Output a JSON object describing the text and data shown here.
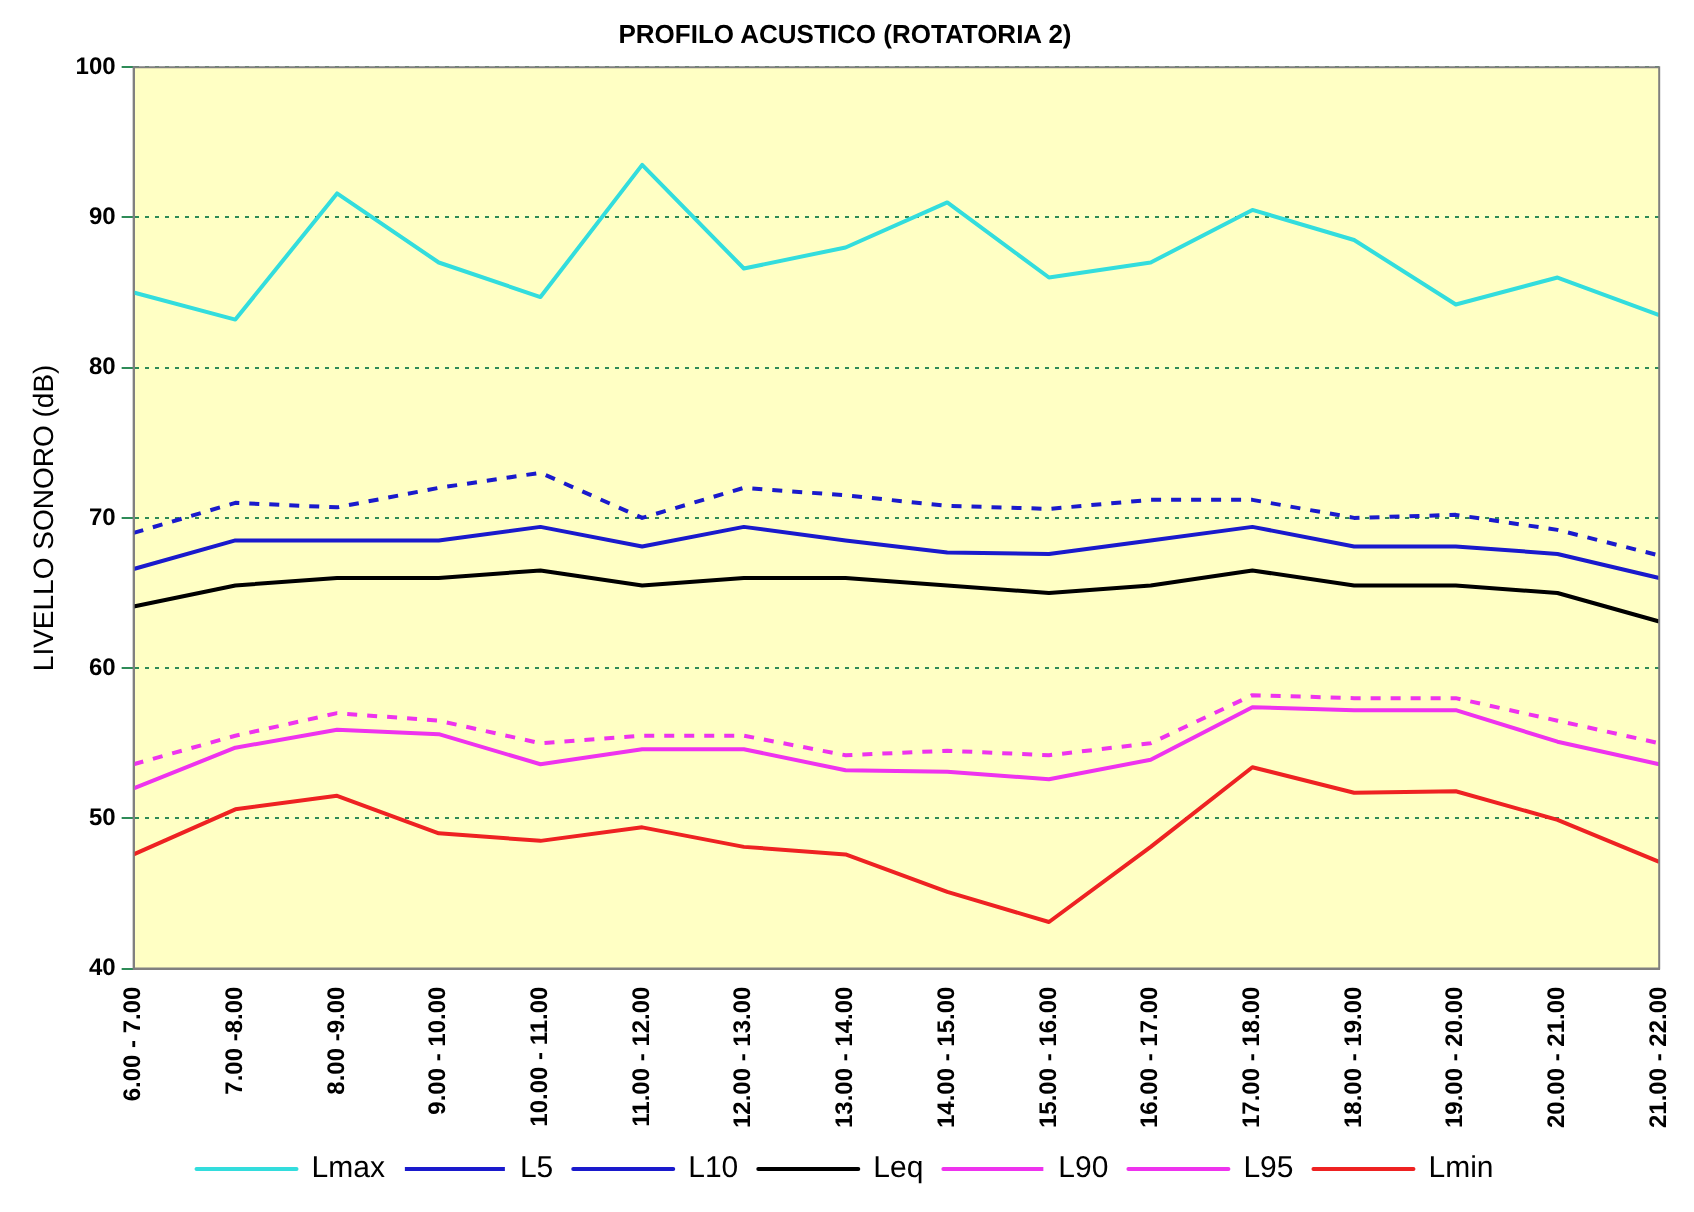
{
  "chart_data": {
    "type": "line",
    "title": "PROFILO ACUSTICO (ROTATORIA 2)",
    "ylabel": "LIVELLO SONORO (dB)",
    "categories": [
      "6.00 - 7.00",
      "7.00 -8.00",
      "8.00 -9.00",
      "9.00 - 10.00",
      "10.00 - 11.00",
      "11.00 - 12.00",
      "12.00 - 13.00",
      "13.00 - 14.00",
      "14.00 - 15.00",
      "15.00 - 16.00",
      "16.00 - 17.00",
      "17.00 - 18.00",
      "18.00 - 19.00",
      "19.00 - 20.00",
      "20.00 - 21.00",
      "21.00 - 22.00"
    ],
    "series": [
      {
        "name": "Lmax",
        "color": "#33dddd",
        "line_style": "solid",
        "values": [
          85,
          83.2,
          91.6,
          87,
          84.7,
          93.5,
          86.6,
          88,
          91,
          86,
          87,
          90.5,
          88.5,
          84.2,
          86,
          83.5
        ]
      },
      {
        "name": "L5",
        "color": "#1a1acc",
        "line_style": "dashed",
        "values": [
          69,
          71,
          70.7,
          72,
          73,
          70,
          72,
          71.5,
          70.8,
          70.6,
          71.2,
          71.2,
          70,
          70.2,
          69.2,
          67.5
        ]
      },
      {
        "name": "L10",
        "color": "#1a1acc",
        "line_style": "solid",
        "values": [
          66.6,
          68.5,
          68.5,
          68.5,
          69.4,
          68.1,
          69.4,
          68.5,
          67.7,
          67.6,
          68.5,
          69.4,
          68.1,
          68.1,
          67.6,
          66
        ]
      },
      {
        "name": "Leq",
        "color": "#000000",
        "line_style": "solid",
        "values": [
          64.1,
          65.5,
          66,
          66,
          66.5,
          65.5,
          66,
          66,
          65.5,
          65,
          65.5,
          66.5,
          65.5,
          65.5,
          65,
          63.1
        ]
      },
      {
        "name": "L90",
        "color": "#ee33ee",
        "line_style": "dashed",
        "values": [
          53.6,
          55.5,
          57,
          56.5,
          55,
          55.5,
          55.5,
          54.2,
          54.5,
          54.2,
          55,
          58.2,
          58,
          58,
          56.5,
          55
        ]
      },
      {
        "name": "L95",
        "color": "#ee33ee",
        "line_style": "solid",
        "values": [
          52,
          54.7,
          55.9,
          55.6,
          53.6,
          54.6,
          54.6,
          53.2,
          53.1,
          52.6,
          53.9,
          57.4,
          57.2,
          57.2,
          55.1,
          53.6
        ]
      },
      {
        "name": "Lmin",
        "color": "#ee2222",
        "line_style": "solid",
        "values": [
          47.6,
          50.6,
          51.5,
          49,
          48.5,
          49.4,
          48.1,
          47.6,
          45.1,
          43.1,
          48.1,
          53.4,
          51.7,
          51.8,
          49.9,
          47.1
        ]
      }
    ],
    "ylim": [
      40,
      100
    ],
    "yticks": [
      40,
      50,
      60,
      70,
      80,
      90,
      100
    ],
    "grid": "y",
    "legend": "bottom",
    "marker": "none"
  }
}
